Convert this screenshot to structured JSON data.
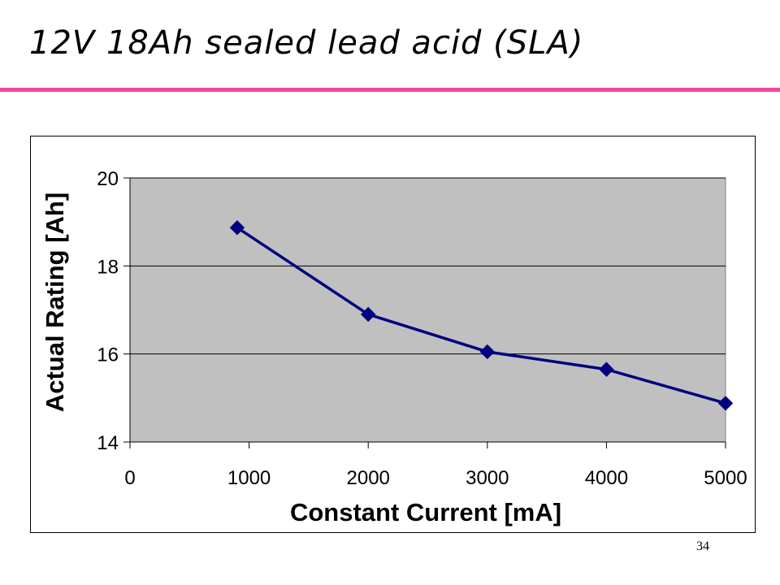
{
  "slide": {
    "title": "12V 18Ah sealed lead acid (SLA)",
    "page_number": "34",
    "accent_color": "#f0479b"
  },
  "chart_data": {
    "type": "line",
    "title": "",
    "xlabel": "Constant Current [mA]",
    "ylabel": "Actual Rating [Ah]",
    "xlim": [
      0,
      5000
    ],
    "ylim": [
      14,
      20
    ],
    "x_ticks": [
      0,
      1000,
      2000,
      3000,
      4000,
      5000
    ],
    "y_ticks": [
      14,
      16,
      18,
      20
    ],
    "grid": "horizontal",
    "plot_background": "#c0c0c0",
    "series": [
      {
        "color": "#000080",
        "marker": "diamond",
        "x": [
          900,
          2000,
          3000,
          4000,
          5000
        ],
        "y": [
          18.87,
          16.9,
          16.05,
          15.65,
          14.88
        ]
      }
    ]
  }
}
